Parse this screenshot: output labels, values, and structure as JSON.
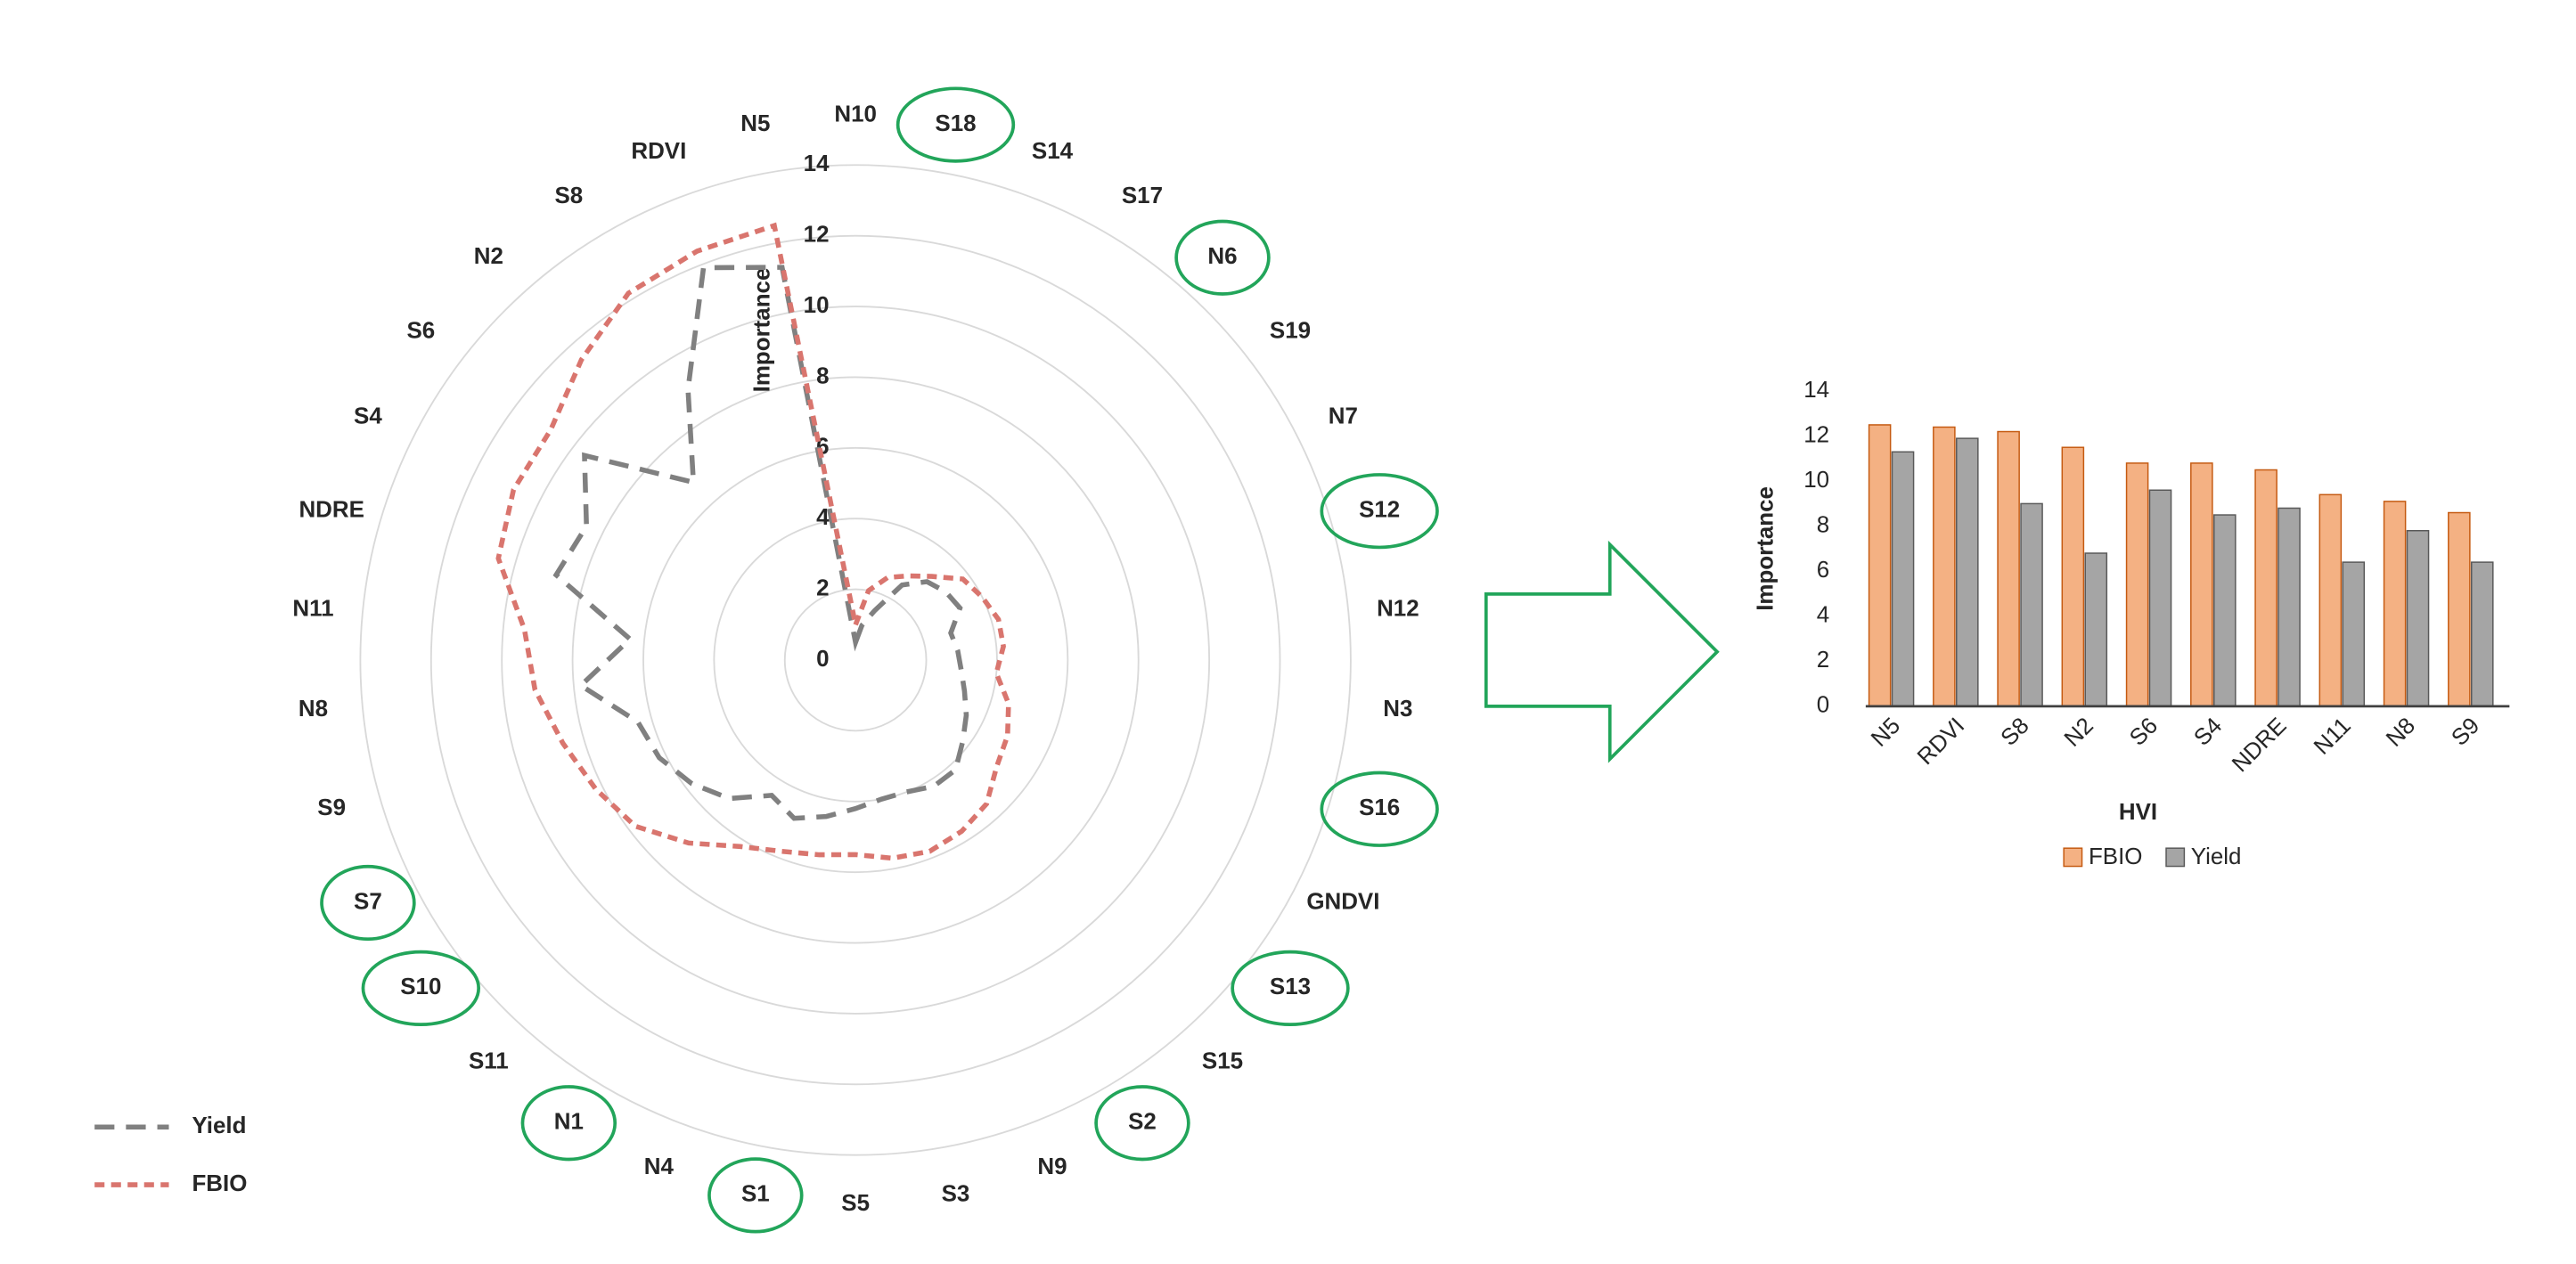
{
  "chart_data": [
    {
      "type": "radar",
      "axis_label": "Importance",
      "categories": [
        "N10",
        "S18",
        "S14",
        "S17",
        "N6",
        "S19",
        "N7",
        "S12",
        "N12",
        "N3",
        "S16",
        "GNDVI",
        "S13",
        "S15",
        "S2",
        "N9",
        "S3",
        "S5",
        "S1",
        "N4",
        "N1",
        "S11",
        "S10",
        "S7",
        "S9",
        "N8",
        "N11",
        "NDRE",
        "S4",
        "S6",
        "N2",
        "S8",
        "RDVI",
        "N5"
      ],
      "circled_indices": [
        1,
        4,
        7,
        10,
        12,
        14,
        18,
        20,
        22,
        23
      ],
      "ylim": [
        0,
        14
      ],
      "yticks": [
        0,
        2,
        4,
        6,
        8,
        10,
        12,
        14
      ],
      "series": [
        {
          "name": "Yield",
          "color": "#808080",
          "values": [
            0.5,
            1,
            1.5,
            2.5,
            3,
            3.2,
            3.3,
            2.8,
            2.9,
            3,
            3.2,
            3.5,
            3.8,
            4.2,
            4.2,
            4,
            4,
            4.2,
            4.5,
            4.8,
            4.5,
            5.3,
            5.8,
            6.2,
            6.4,
            7.8,
            6.4,
            8.8,
            8.5,
            9.6,
            6.8,
            9,
            11.9,
            11.3
          ]
        },
        {
          "name": "FBIO",
          "color": "#d9756e",
          "values": [
            1,
            2,
            2.5,
            2.8,
            3.2,
            3.8,
            4,
            4.2,
            4.2,
            4,
            4.5,
            4.8,
            5,
            5.5,
            5.7,
            5.8,
            5.7,
            5.5,
            5.6,
            5.8,
            6.2,
            7,
            7.8,
            8.2,
            8.6,
            9.1,
            9.4,
            10.5,
            10.8,
            10.8,
            11.5,
            12.2,
            12.4,
            12.5
          ]
        }
      ]
    },
    {
      "type": "bar",
      "x_label": "HVI",
      "y_label": "Importance",
      "categories": [
        "N5",
        "RDVI",
        "S8",
        "N2",
        "S6",
        "S4",
        "NDRE",
        "N11",
        "N8",
        "S9"
      ],
      "ylim": [
        0,
        14
      ],
      "yticks": [
        0,
        2,
        4,
        6,
        8,
        10,
        12,
        14
      ],
      "series": [
        {
          "name": "FBIO",
          "color": "#f4b183",
          "values": [
            12.5,
            12.4,
            12.2,
            11.5,
            10.8,
            10.8,
            10.5,
            9.4,
            9.1,
            8.6
          ]
        },
        {
          "name": "Yield",
          "color": "#a5a5a5",
          "values": [
            11.3,
            11.9,
            9.0,
            6.8,
            9.6,
            8.5,
            8.8,
            6.4,
            7.8,
            6.4
          ]
        }
      ]
    }
  ]
}
